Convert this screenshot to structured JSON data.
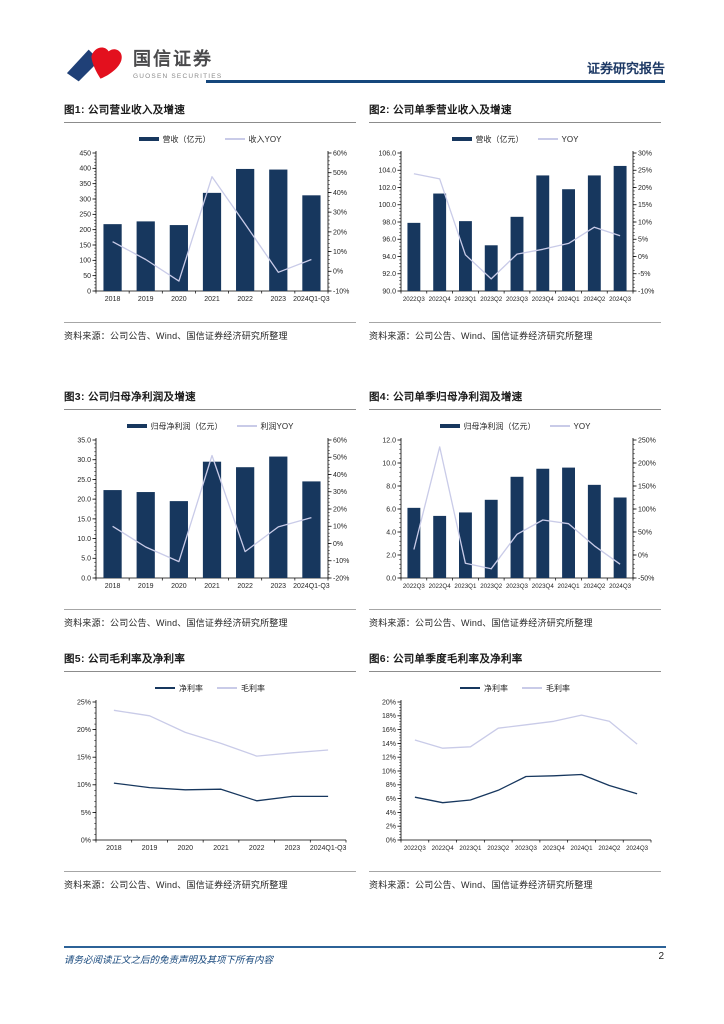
{
  "header": {
    "brand_cn": "国信证券",
    "brand_en": "GUOSEN SECURITIES",
    "report_type": "证券研究报告"
  },
  "footer": {
    "disclaimer": "请务必阅读正文之后的免责声明及其项下所有内容",
    "page_number": "2"
  },
  "colors": {
    "bar_navy": "#17375E",
    "line_lavender": "#C9CBE8",
    "header_rule": "#16477c",
    "logo_blue": "#1F4077",
    "logo_red": "#E3101E"
  },
  "chart_data": [
    {
      "id": "fig1",
      "type": "bar+line",
      "title": "图1: 公司营业收入及增速",
      "source": "资料来源：公司公告、Wind、国信证券经济研究所整理",
      "categories": [
        "2018",
        "2019",
        "2020",
        "2021",
        "2022",
        "2023",
        "2024Q1-Q3"
      ],
      "left_axis": {
        "min": 0,
        "max": 450,
        "step": 50,
        "format": "int"
      },
      "right_axis": {
        "min": -10,
        "max": 60,
        "step": 10,
        "format": "pct"
      },
      "series": [
        {
          "kind": "bar",
          "name": "营收（亿元）",
          "color": "#17375E",
          "values": [
            218,
            227,
            215,
            320,
            398,
            396,
            312
          ]
        },
        {
          "kind": "line",
          "name": "收入YOY",
          "color": "#C9CBE8",
          "axis": "right",
          "values": [
            15,
            6,
            -5,
            48,
            24,
            -0.5,
            6
          ]
        }
      ]
    },
    {
      "id": "fig2",
      "type": "bar+line",
      "title": "图2: 公司单季营业收入及增速",
      "source": "资料来源：公司公告、Wind、国信证券经济研究所整理",
      "categories": [
        "2022Q3",
        "2022Q4",
        "2023Q1",
        "2023Q2",
        "2023Q3",
        "2023Q4",
        "2024Q1",
        "2024Q2",
        "2024Q3"
      ],
      "left_axis": {
        "min": 90,
        "max": 106,
        "step": 2,
        "format": "dec1"
      },
      "right_axis": {
        "min": -10,
        "max": 30,
        "step": 5,
        "format": "pct"
      },
      "series": [
        {
          "kind": "bar",
          "name": "营收（亿元）",
          "color": "#17375E",
          "values": [
            97.9,
            101.3,
            98.1,
            95.3,
            98.6,
            103.4,
            101.8,
            103.4,
            104.5
          ]
        },
        {
          "kind": "line",
          "name": "YOY",
          "color": "#C9CBE8",
          "axis": "right",
          "values": [
            24,
            22.5,
            0.5,
            -6.5,
            0.7,
            2.1,
            3.8,
            8.5,
            6.0
          ]
        }
      ]
    },
    {
      "id": "fig3",
      "type": "bar+line",
      "title": "图3: 公司归母净利润及增速",
      "source": "资料来源：公司公告、Wind、国信证券经济研究所整理",
      "categories": [
        "2018",
        "2019",
        "2020",
        "2021",
        "2022",
        "2023",
        "2024Q1-Q3"
      ],
      "left_axis": {
        "min": 0,
        "max": 35,
        "step": 5,
        "format": "dec1"
      },
      "right_axis": {
        "min": -20,
        "max": 60,
        "step": 10,
        "format": "pct"
      },
      "series": [
        {
          "kind": "bar",
          "name": "归母净利润（亿元）",
          "color": "#17375E",
          "values": [
            22.3,
            21.8,
            19.5,
            29.5,
            28.1,
            30.8,
            24.5
          ]
        },
        {
          "kind": "line",
          "name": "利润YOY",
          "color": "#C9CBE8",
          "axis": "right",
          "values": [
            10,
            -2,
            -10.5,
            51,
            -4.7,
            9.6,
            15
          ]
        }
      ]
    },
    {
      "id": "fig4",
      "type": "bar+line",
      "title": "图4: 公司单季归母净利润及增速",
      "source": "资料来源：公司公告、Wind、国信证券经济研究所整理",
      "categories": [
        "2022Q3",
        "2022Q4",
        "2023Q1",
        "2023Q2",
        "2023Q3",
        "2023Q4",
        "2024Q1",
        "2024Q2",
        "2024Q3"
      ],
      "left_axis": {
        "min": 0,
        "max": 12,
        "step": 2,
        "format": "dec1"
      },
      "right_axis": {
        "min": -50,
        "max": 250,
        "step": 50,
        "format": "pct"
      },
      "series": [
        {
          "kind": "bar",
          "name": "归母净利润（亿元）",
          "color": "#17375E",
          "values": [
            6.1,
            5.4,
            5.7,
            6.8,
            8.8,
            9.5,
            9.6,
            8.1,
            7.0
          ]
        },
        {
          "kind": "line",
          "name": "YOY",
          "color": "#C9CBE8",
          "axis": "right",
          "values": [
            12,
            235,
            -18,
            -30,
            45,
            76,
            68,
            20,
            -20
          ]
        }
      ]
    },
    {
      "id": "fig5",
      "type": "line",
      "title": "图5: 公司毛利率及净利率",
      "source": "资料来源：公司公告、Wind、国信证券经济研究所整理",
      "categories": [
        "2018",
        "2019",
        "2020",
        "2021",
        "2022",
        "2023",
        "2024Q1-Q3"
      ],
      "left_axis": {
        "min": 0,
        "max": 25,
        "step": 5,
        "format": "pct"
      },
      "series": [
        {
          "kind": "line",
          "name": "净利率",
          "color": "#17375E",
          "values": [
            10.3,
            9.5,
            9.1,
            9.2,
            7.1,
            7.9,
            7.9
          ]
        },
        {
          "kind": "line",
          "name": "毛利率",
          "color": "#C9CBE8",
          "values": [
            23.5,
            22.5,
            19.5,
            17.5,
            15.2,
            15.8,
            16.3
          ]
        }
      ]
    },
    {
      "id": "fig6",
      "type": "line",
      "title": "图6: 公司单季度毛利率及净利率",
      "source": "资料来源：公司公告、Wind、国信证券经济研究所整理",
      "categories": [
        "2022Q3",
        "2022Q4",
        "2023Q1",
        "2023Q2",
        "2023Q3",
        "2023Q4",
        "2024Q1",
        "2024Q2",
        "2024Q3"
      ],
      "left_axis": {
        "min": 0,
        "max": 20,
        "step": 2,
        "format": "pct"
      },
      "series": [
        {
          "kind": "line",
          "name": "净利率",
          "color": "#17375E",
          "values": [
            6.2,
            5.4,
            5.8,
            7.2,
            9.2,
            9.3,
            9.5,
            7.9,
            6.7
          ]
        },
        {
          "kind": "line",
          "name": "毛利率",
          "color": "#C9CBE8",
          "values": [
            14.5,
            13.3,
            13.5,
            16.2,
            16.7,
            17.2,
            18.1,
            17.2,
            13.9
          ]
        }
      ]
    }
  ]
}
